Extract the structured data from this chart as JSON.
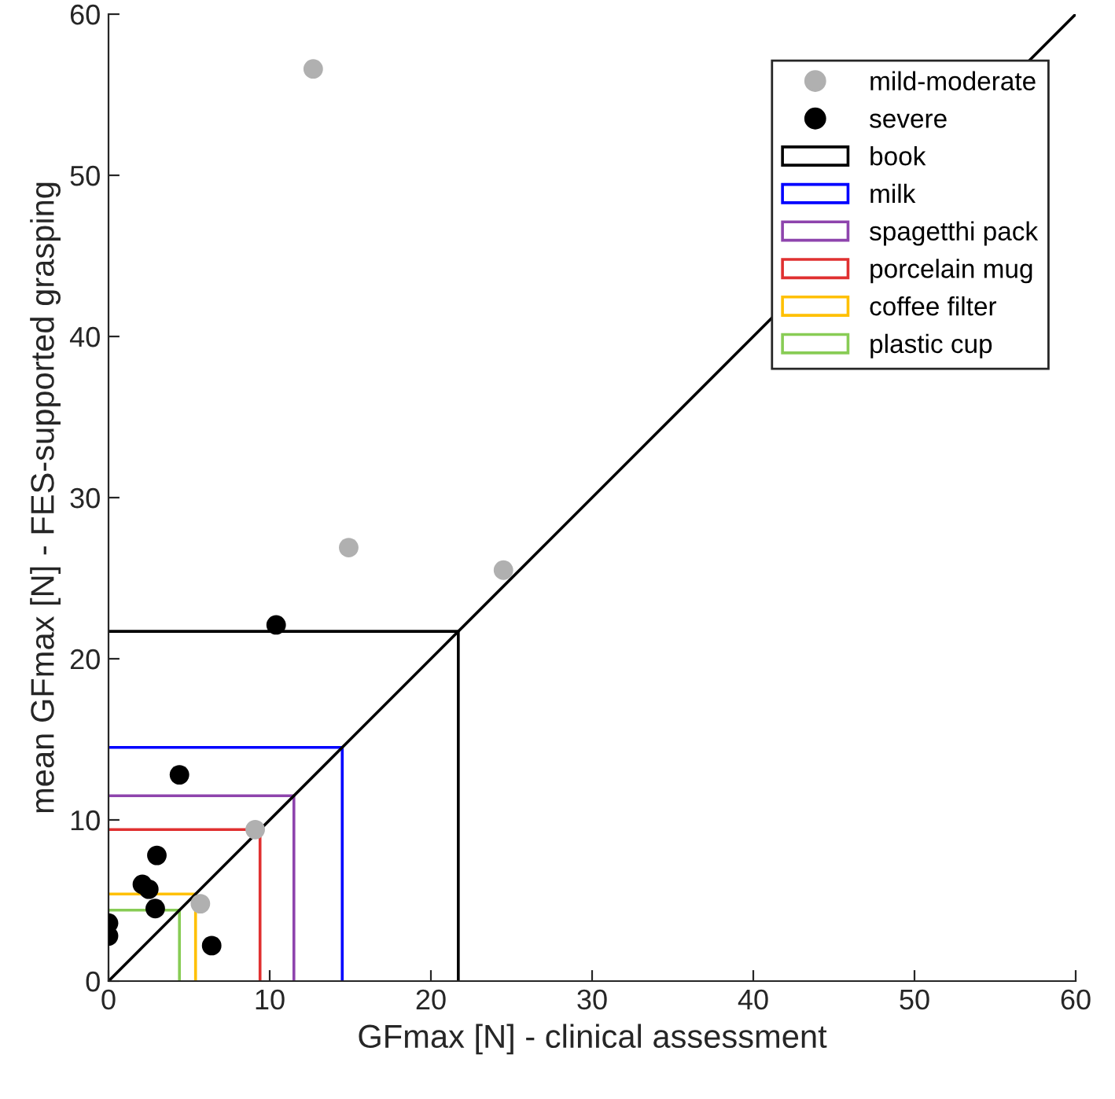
{
  "chart_data": {
    "type": "scatter",
    "xlabel": "GFmax [N] - clinical assessment",
    "ylabel": "mean GFmax [N] - FES-supported grasping",
    "xlim": [
      0,
      60
    ],
    "ylim": [
      0,
      60
    ],
    "xticks": [
      0,
      10,
      20,
      30,
      40,
      50,
      60
    ],
    "yticks": [
      0,
      10,
      20,
      30,
      40,
      50,
      60
    ],
    "grid": false,
    "legend": "top right",
    "series": [
      {
        "name": "mild-moderate",
        "marker": "circle",
        "color": "#b0b0b0",
        "x": [
          12.7,
          14.9,
          24.5,
          9.1,
          5.7
        ],
        "values": [
          56.6,
          26.9,
          25.5,
          9.4,
          4.8
        ]
      },
      {
        "name": "severe",
        "marker": "circle",
        "color": "#000000",
        "x": [
          10.4,
          4.4,
          3.0,
          2.1,
          2.5,
          2.9,
          6.4,
          0,
          0
        ],
        "values": [
          22.1,
          12.8,
          7.8,
          6.0,
          5.7,
          4.5,
          2.2,
          3.6,
          2.8
        ]
      },
      {
        "name": "book",
        "type": "line",
        "color": "#000000",
        "x": [
          0,
          21.7,
          21.7
        ],
        "values": [
          21.7,
          21.7,
          0
        ]
      },
      {
        "name": "milk",
        "type": "line",
        "color": "#0000ff",
        "x": [
          0,
          14.5,
          14.5
        ],
        "values": [
          14.5,
          14.5,
          0
        ]
      },
      {
        "name": "spagetthi pack",
        "type": "line",
        "color": "#8e44ad",
        "x": [
          0,
          11.5,
          11.5
        ],
        "values": [
          11.5,
          11.5,
          0
        ]
      },
      {
        "name": "porcelain mug",
        "type": "line",
        "color": "#e03030",
        "x": [
          0,
          9.4,
          9.4
        ],
        "values": [
          9.4,
          9.4,
          0
        ]
      },
      {
        "name": "coffee filter",
        "type": "line",
        "color": "#ffc000",
        "x": [
          0,
          5.4,
          5.4
        ],
        "values": [
          5.4,
          5.4,
          0
        ]
      },
      {
        "name": "plastic cup",
        "type": "line",
        "color": "#88cc55",
        "x": [
          0,
          4.4,
          4.4
        ],
        "values": [
          4.4,
          4.4,
          0
        ]
      },
      {
        "type": "line",
        "color": "#000000",
        "x": [
          0,
          60
        ],
        "values": [
          0,
          60
        ]
      }
    ]
  }
}
